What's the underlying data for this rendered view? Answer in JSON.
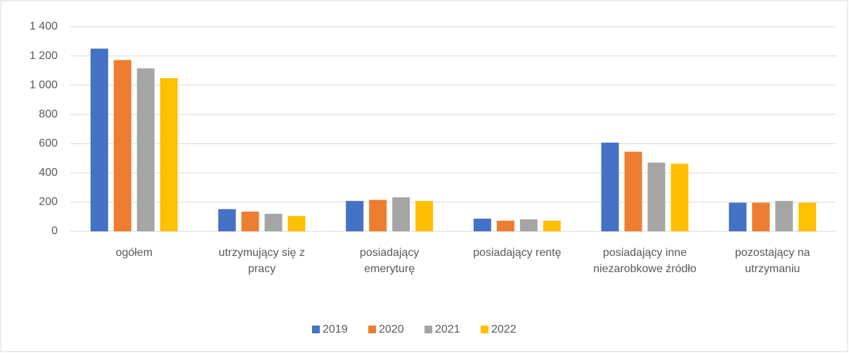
{
  "chart_data": {
    "type": "bar",
    "categories": [
      "ogółem",
      "utrzymujący się z pracy",
      "posiadający emeryturę",
      "posiadający rentę",
      "posiadający inne niezarobkowe źródło",
      "pozostający na utrzymaniu"
    ],
    "series": [
      {
        "name": "2019",
        "color": "#4472c4",
        "values": [
          1250,
          152,
          208,
          87,
          607,
          196
        ]
      },
      {
        "name": "2020",
        "color": "#ed7d31",
        "values": [
          1172,
          135,
          215,
          73,
          545,
          196
        ]
      },
      {
        "name": "2021",
        "color": "#a5a5a5",
        "values": [
          1115,
          120,
          233,
          82,
          470,
          208
        ]
      },
      {
        "name": "2022",
        "color": "#ffc000",
        "values": [
          1048,
          105,
          208,
          73,
          463,
          196
        ]
      }
    ],
    "ylim": [
      0,
      1400
    ],
    "yticks": [
      0,
      200,
      400,
      600,
      800,
      {
        "value": 1000,
        "label": "1 000"
      },
      {
        "value": 1200,
        "label": "1 200"
      },
      {
        "value": 1400,
        "label": "1 400"
      }
    ],
    "grid": true,
    "legend": "bottom"
  }
}
